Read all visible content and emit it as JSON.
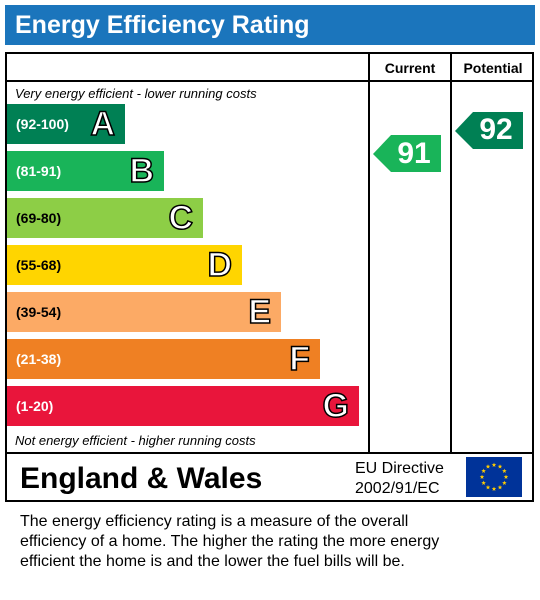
{
  "header": {
    "title": "Energy Efficiency Rating"
  },
  "columns": {
    "current": "Current",
    "potential": "Potential"
  },
  "notes": {
    "top": "Very energy efficient - lower running costs",
    "bottom": "Not energy efficient - higher running costs"
  },
  "chart_data": {
    "type": "bar",
    "title": "Energy Efficiency Rating",
    "bands": [
      {
        "range": "(92-100)",
        "letter": "A",
        "color": "#008054"
      },
      {
        "range": "(81-91)",
        "letter": "B",
        "color": "#19b459"
      },
      {
        "range": "(69-80)",
        "letter": "C",
        "color": "#8dce46"
      },
      {
        "range": "(55-68)",
        "letter": "D",
        "color": "#ffd500"
      },
      {
        "range": "(39-54)",
        "letter": "E",
        "color": "#fcaa65"
      },
      {
        "range": "(21-38)",
        "letter": "F",
        "color": "#ef8023"
      },
      {
        "range": "(1-20)",
        "letter": "G",
        "color": "#e9153b"
      }
    ],
    "ratings": {
      "current": {
        "value": "91",
        "band": "B",
        "color": "#19b459"
      },
      "potential": {
        "value": "92",
        "band": "A",
        "color": "#008054"
      }
    }
  },
  "footer": {
    "country": "England & Wales",
    "directive_line1": "EU Directive",
    "directive_line2": "2002/91/EC",
    "flag_color": "#003399",
    "star_color": "#ffcc00"
  },
  "description": [
    "The energy efficiency rating is a measure of the overall",
    "efficiency of a home.  The higher the rating the more energy",
    "efficient the home is and the lower the fuel bills will be."
  ]
}
